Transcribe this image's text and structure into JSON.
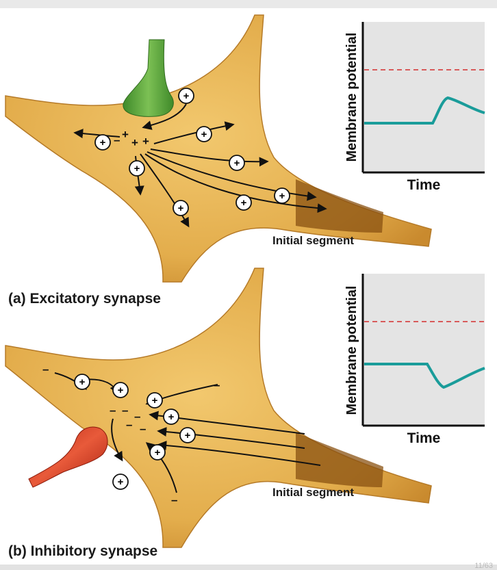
{
  "panel_a": {
    "caption": "(a)  Excitatory synapse",
    "segment_label": "Initial segment",
    "graph": {
      "ylabel": "Membrane potential",
      "xlabel": "Time"
    }
  },
  "panel_b": {
    "caption": "(b) Inhibitory synapse",
    "segment_label": "Initial segment",
    "graph": {
      "ylabel": "Membrane potential",
      "xlabel": "Time"
    }
  },
  "symbols": {
    "plus": "+",
    "minus": "–"
  },
  "page_indicator": "11/63",
  "colors": {
    "neuron_body": "#e3ad4c",
    "neuron_dark": "#8a5212",
    "excitatory_terminal": "#5fa43a",
    "inhibitory_terminal": "#d23a22",
    "trace": "#1a9c9a",
    "threshold": "#d85a5a",
    "graph_bg": "#e4e4e4"
  }
}
